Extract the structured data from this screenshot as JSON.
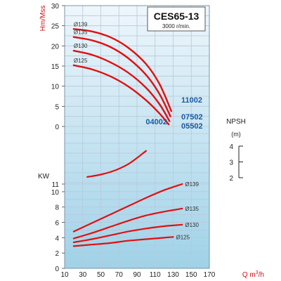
{
  "chart_data": {
    "type": "line",
    "title": "CES65-13",
    "subtitle": "3000 r/min.",
    "xlabel": "Q m³/h",
    "xlabel_prefix": "Q m",
    "xlabel_sup": "3",
    "xlabel_suffix": "/h",
    "x_ticks": [
      "10",
      "30",
      "50",
      "70",
      "90",
      "110",
      "130",
      "150",
      "170"
    ],
    "xlim": [
      10,
      170
    ],
    "grid": true,
    "head_panel": {
      "ylabel": "Hm/Mss",
      "ylim": [
        0,
        30
      ],
      "y_ticks": [
        "0",
        "5",
        "10",
        "15",
        "20",
        "25",
        "30"
      ],
      "series": [
        {
          "name": "Ø139",
          "x": [
            20,
            40,
            60,
            80,
            100,
            115,
            128
          ],
          "y": [
            24.2,
            23.6,
            22.2,
            19.6,
            15.5,
            10.5,
            3.8
          ]
        },
        {
          "name": "Ø135",
          "x": [
            20,
            40,
            60,
            80,
            100,
            115,
            127
          ],
          "y": [
            22.2,
            21.4,
            19.8,
            17.0,
            12.8,
            8.0,
            2.5
          ]
        },
        {
          "name": "Ø130",
          "x": [
            20,
            40,
            60,
            80,
            100,
            115,
            126
          ],
          "y": [
            18.8,
            17.8,
            16.0,
            13.4,
            9.6,
            5.5,
            1.3
          ]
        },
        {
          "name": "Ø125",
          "x": [
            20,
            40,
            60,
            80,
            100,
            115,
            125
          ],
          "y": [
            15.2,
            14.2,
            12.5,
            10.0,
            6.5,
            3.2,
            0.5
          ]
        }
      ],
      "model_labels": [
        "11002",
        "07502",
        "05502",
        "04002"
      ]
    },
    "npsh_panel": {
      "ylabel": "NPSH",
      "unit": "(m)",
      "y_ticks": [
        "2",
        "3",
        "4"
      ],
      "ylim": [
        2,
        4
      ],
      "series": [
        {
          "x": [
            35,
            50,
            65,
            80,
            90,
            100
          ],
          "y": [
            2.05,
            2.2,
            2.45,
            2.85,
            3.25,
            3.7
          ]
        }
      ]
    },
    "power_panel": {
      "ylabel": "KW",
      "ylim": [
        0,
        11
      ],
      "y_ticks": [
        "0",
        "2",
        "4",
        "6",
        "8",
        "10",
        "11"
      ],
      "series": [
        {
          "name": "Ø139",
          "x": [
            20,
            40,
            60,
            80,
            100,
            120,
            140
          ],
          "y": [
            4.8,
            5.9,
            7.0,
            8.1,
            9.2,
            10.2,
            11.0
          ]
        },
        {
          "name": "Ø135",
          "x": [
            20,
            40,
            60,
            80,
            100,
            120,
            140
          ],
          "y": [
            3.9,
            4.6,
            5.4,
            6.2,
            6.9,
            7.4,
            7.8
          ]
        },
        {
          "name": "Ø130",
          "x": [
            20,
            40,
            60,
            80,
            100,
            120,
            140
          ],
          "y": [
            3.4,
            3.8,
            4.3,
            4.8,
            5.2,
            5.5,
            5.7
          ]
        },
        {
          "name": "Ø125",
          "x": [
            20,
            40,
            60,
            80,
            100,
            120,
            130
          ],
          "y": [
            2.9,
            3.1,
            3.3,
            3.6,
            3.8,
            4.0,
            4.1
          ]
        }
      ]
    }
  },
  "colors": {
    "curve": "#e01010",
    "label_red": "#d01010",
    "label_blue": "#1a5aa0",
    "grid": "#b8c8d8",
    "bg_top": "#eef6fb",
    "bg_bottom": "#9fd2e8"
  }
}
